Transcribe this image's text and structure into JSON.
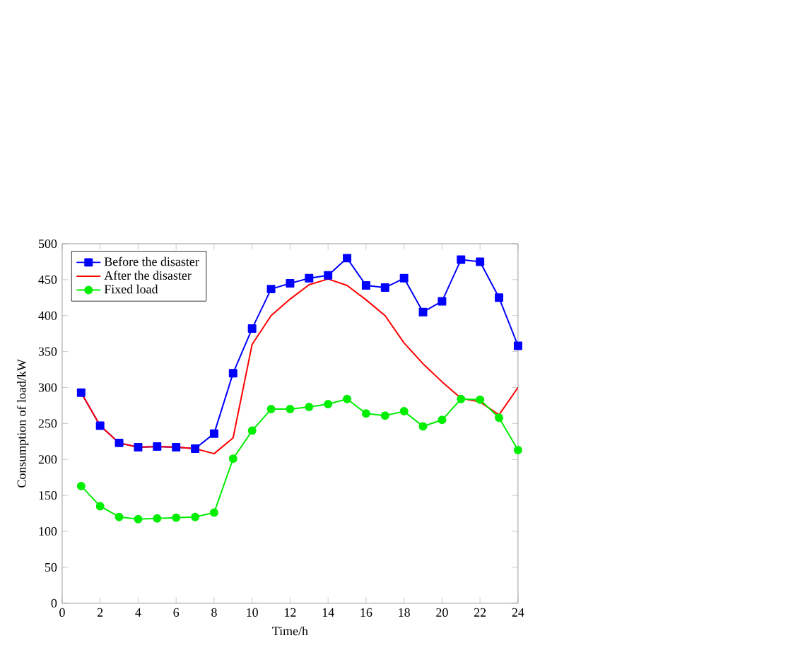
{
  "chart_data": {
    "type": "line",
    "xlabel": "Time/h",
    "ylabel": "Consumption of load/kW",
    "x": [
      1,
      2,
      3,
      4,
      5,
      6,
      7,
      8,
      9,
      10,
      11,
      12,
      13,
      14,
      15,
      16,
      17,
      18,
      19,
      20,
      21,
      22,
      23,
      24
    ],
    "series": [
      {
        "name": "Before the disaster",
        "color": "#0000ff",
        "marker": "square",
        "values": [
          293,
          247,
          223,
          217,
          218,
          217,
          215,
          236,
          320,
          382,
          437,
          445,
          452,
          456,
          480,
          442,
          439,
          452,
          405,
          420,
          478,
          475,
          425,
          358
        ]
      },
      {
        "name": "After the disaster",
        "color": "#ff0000",
        "marker": "none",
        "values": [
          293,
          247,
          223,
          217,
          218,
          217,
          215,
          208,
          230,
          360,
          400,
          423,
          443,
          451,
          442,
          422,
          400,
          362,
          333,
          308,
          285,
          280,
          262,
          300
        ]
      },
      {
        "name": "Fixed load",
        "color": "#00ee00",
        "marker": "circle",
        "values": [
          163,
          135,
          120,
          117,
          118,
          119,
          120,
          126,
          201,
          240,
          270,
          270,
          273,
          277,
          284,
          264,
          261,
          267,
          246,
          255,
          284,
          283,
          258,
          213
        ]
      }
    ],
    "xlim": [
      0,
      24
    ],
    "ylim": [
      0,
      500
    ],
    "xticks": [
      0,
      2,
      4,
      6,
      8,
      10,
      12,
      14,
      16,
      18,
      20,
      22,
      24
    ],
    "yticks": [
      0,
      50,
      100,
      150,
      200,
      250,
      300,
      350,
      400,
      450,
      500
    ],
    "grid": false,
    "legend": "top left"
  }
}
